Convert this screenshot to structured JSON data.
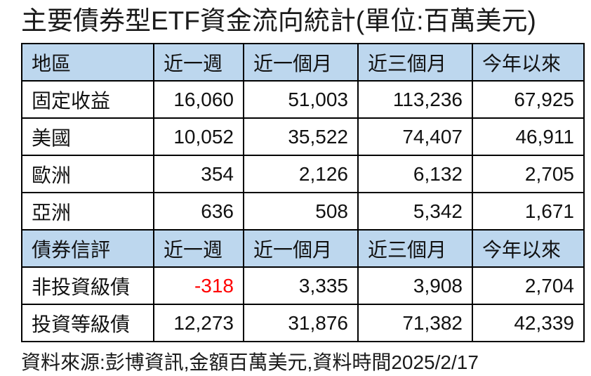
{
  "title": "主要債券型ETF資金流向統計(單位:百萬美元)",
  "footer": "資料來源:彭博資訊,金額百萬美元,資料時間2025/2/17",
  "colors": {
    "header_bg": "#BDD7EE",
    "negative": "#FF0000",
    "border": "#000000"
  },
  "table": {
    "sections": [
      {
        "header": [
          "地區",
          "近一週",
          "近一個月",
          "近三個月",
          "今年以來"
        ],
        "rows": [
          {
            "label": "固定收益",
            "values": [
              "16,060",
              "51,003",
              "113,236",
              "67,925"
            ]
          },
          {
            "label": "美國",
            "values": [
              "10,052",
              "35,522",
              "74,407",
              "46,911"
            ]
          },
          {
            "label": "歐洲",
            "values": [
              "354",
              "2,126",
              "6,132",
              "2,705"
            ]
          },
          {
            "label": "亞洲",
            "values": [
              "636",
              "508",
              "5,342",
              "1,671"
            ]
          }
        ]
      },
      {
        "header": [
          "債券信評",
          "近一週",
          "近一個月",
          "近三個月",
          "今年以來"
        ],
        "rows": [
          {
            "label": "非投資級債",
            "values": [
              "-318",
              "3,335",
              "3,908",
              "2,704"
            ]
          },
          {
            "label": "投資等級債",
            "values": [
              "12,273",
              "31,876",
              "71,382",
              "42,339"
            ]
          }
        ]
      }
    ]
  },
  "chart_data": {
    "type": "table",
    "title": "主要債券型ETF資金流向統計(單位:百萬美元)",
    "unit": "百萬美元",
    "source_note": "資料來源:彭博資訊,金額百萬美元,資料時間2025/2/17",
    "columns": [
      "近一週",
      "近一個月",
      "近三個月",
      "今年以來"
    ],
    "sections": [
      {
        "group_label": "地區",
        "rows": [
          {
            "name": "固定收益",
            "values": [
              16060,
              51003,
              113236,
              67925
            ]
          },
          {
            "name": "美國",
            "values": [
              10052,
              35522,
              74407,
              46911
            ]
          },
          {
            "name": "歐洲",
            "values": [
              354,
              2126,
              6132,
              2705
            ]
          },
          {
            "name": "亞洲",
            "values": [
              636,
              508,
              5342,
              1671
            ]
          }
        ]
      },
      {
        "group_label": "債券信評",
        "rows": [
          {
            "name": "非投資級債",
            "values": [
              -318,
              3335,
              3908,
              2704
            ]
          },
          {
            "name": "投資等級債",
            "values": [
              12273,
              31876,
              71382,
              42339
            ]
          }
        ]
      }
    ]
  }
}
